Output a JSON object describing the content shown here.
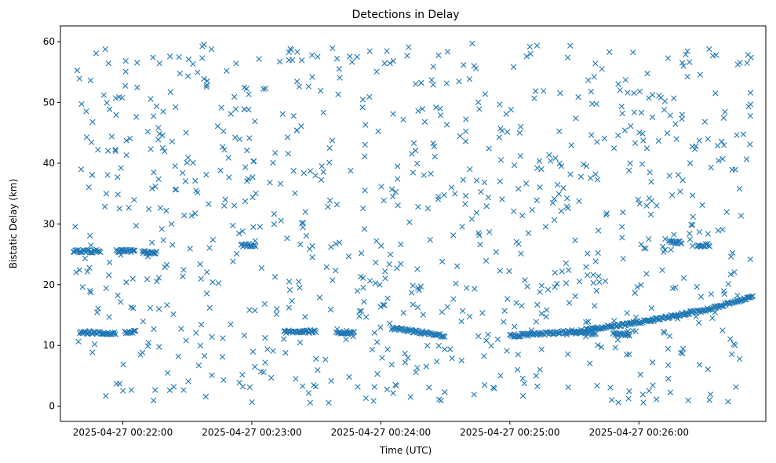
{
  "chart_data": {
    "type": "scatter",
    "title": "Detections in Delay",
    "xlabel": "Time (UTC)",
    "ylabel": "Bistatic Delay (km)",
    "marker": "x",
    "color": "#1f77b4",
    "xlim": [
      "2025-04-27 00:21:31",
      "2025-04-27 00:26:59"
    ],
    "ylim": [
      -2.5,
      62.6
    ],
    "x_ticks": [
      "2025-04-27 00:22:00",
      "2025-04-27 00:23:00",
      "2025-04-27 00:24:00",
      "2025-04-27 00:25:00",
      "2025-04-27 00:26:00"
    ],
    "y_ticks": [
      0,
      10,
      20,
      30,
      40,
      50,
      60
    ],
    "grid": false,
    "x_range": [
      "2025-04-27 00:21:37",
      "2025-04-27 00:26:53"
    ],
    "tracks": [
      {
        "points": [
          [
            "2025-04-27 00:21:37",
            25.5
          ],
          [
            "2025-04-27 00:21:50",
            25.5
          ]
        ]
      },
      {
        "points": [
          [
            "2025-04-27 00:21:57",
            25.6
          ],
          [
            "2025-04-27 00:22:06",
            25.6
          ]
        ]
      },
      {
        "points": [
          [
            "2025-04-27 00:22:09",
            25.3
          ],
          [
            "2025-04-27 00:22:16",
            25.3
          ]
        ]
      },
      {
        "points": [
          [
            "2025-04-27 00:21:40",
            12.2
          ],
          [
            "2025-04-27 00:21:57",
            12.0
          ]
        ]
      },
      {
        "points": [
          [
            "2025-04-27 00:22:01",
            12.2
          ],
          [
            "2025-04-27 00:22:06",
            12.2
          ]
        ]
      },
      {
        "points": [
          [
            "2025-04-27 00:23:15",
            12.3
          ],
          [
            "2025-04-27 00:23:30",
            12.3
          ]
        ]
      },
      {
        "points": [
          [
            "2025-04-27 00:23:40",
            12.1
          ],
          [
            "2025-04-27 00:23:48",
            12.1
          ]
        ]
      },
      {
        "points": [
          [
            "2025-04-27 00:22:55",
            26.5
          ],
          [
            "2025-04-27 00:23:02",
            26.5
          ]
        ]
      },
      {
        "points": [
          [
            "2025-04-27 00:24:05",
            12.8
          ],
          [
            "2025-04-27 00:24:18",
            12.2
          ],
          [
            "2025-04-27 00:24:30",
            11.5
          ]
        ]
      },
      {
        "points": [
          [
            "2025-04-27 00:25:00",
            11.6
          ],
          [
            "2025-04-27 00:25:30",
            12.3
          ],
          [
            "2025-04-27 00:26:00",
            13.8
          ],
          [
            "2025-04-27 00:26:30",
            15.8
          ],
          [
            "2025-04-27 00:26:53",
            18.0
          ]
        ]
      },
      {
        "points": [
          [
            "2025-04-27 00:25:30",
            12.1
          ],
          [
            "2025-04-27 00:25:40",
            12.0
          ]
        ]
      },
      {
        "points": [
          [
            "2025-04-27 00:25:48",
            11.9
          ],
          [
            "2025-04-27 00:25:56",
            11.8
          ]
        ]
      },
      {
        "points": [
          [
            "2025-04-27 00:26:14",
            27.0
          ],
          [
            "2025-04-27 00:26:20",
            27.0
          ]
        ]
      },
      {
        "points": [
          [
            "2025-04-27 00:26:27",
            26.5
          ],
          [
            "2025-04-27 00:26:33",
            26.5
          ]
        ]
      }
    ]
  }
}
